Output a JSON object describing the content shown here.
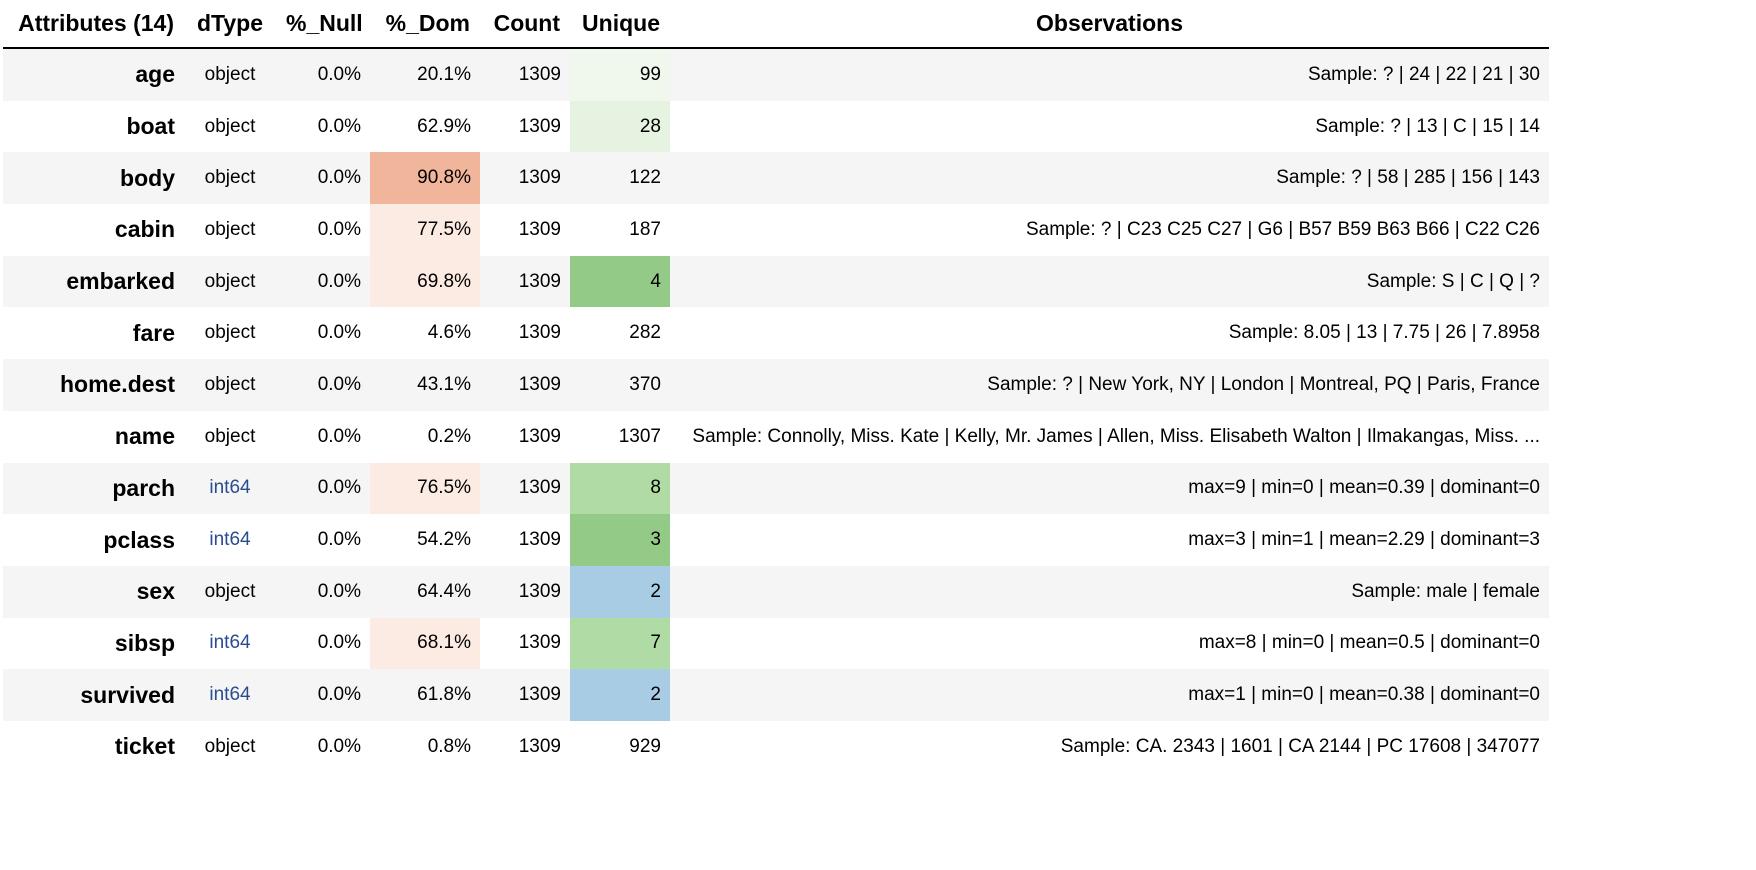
{
  "header": {
    "attributes": "Attributes (14)",
    "dtype": "dType",
    "null": "%_Null",
    "dom": "%_Dom",
    "count": "Count",
    "unique": "Unique",
    "observations": "Observations"
  },
  "rows": [
    {
      "name": "age",
      "dtype": "object",
      "null": "0.0%",
      "dom": "20.1%",
      "count": "1309",
      "unique": "99",
      "obs": "Sample: ? | 24 | 22 | 21 | 30",
      "dom_bg": "",
      "unique_bg": "#f0f8ee"
    },
    {
      "name": "boat",
      "dtype": "object",
      "null": "0.0%",
      "dom": "62.9%",
      "count": "1309",
      "unique": "28",
      "obs": "Sample: ? | 13 | C | 15 | 14",
      "dom_bg": "",
      "unique_bg": "#e6f3e1"
    },
    {
      "name": "body",
      "dtype": "object",
      "null": "0.0%",
      "dom": "90.8%",
      "count": "1309",
      "unique": "122",
      "obs": "Sample: ? | 58 | 285 | 156 | 143",
      "dom_bg": "#f1b59c",
      "unique_bg": ""
    },
    {
      "name": "cabin",
      "dtype": "object",
      "null": "0.0%",
      "dom": "77.5%",
      "count": "1309",
      "unique": "187",
      "obs": "Sample: ? | C23 C25 C27 | G6 | B57 B59 B63 B66 | C22 C26",
      "dom_bg": "#fcebe3",
      "unique_bg": ""
    },
    {
      "name": "embarked",
      "dtype": "object",
      "null": "0.0%",
      "dom": "69.8%",
      "count": "1309",
      "unique": "4",
      "obs": "Sample: S | C | Q | ?",
      "dom_bg": "#fcebe3",
      "unique_bg": "#93ca87"
    },
    {
      "name": "fare",
      "dtype": "object",
      "null": "0.0%",
      "dom": "4.6%",
      "count": "1309",
      "unique": "282",
      "obs": "Sample: 8.05 | 13 | 7.75 | 26 | 7.8958",
      "dom_bg": "",
      "unique_bg": ""
    },
    {
      "name": "home.dest",
      "dtype": "object",
      "null": "0.0%",
      "dom": "43.1%",
      "count": "1309",
      "unique": "370",
      "obs": "Sample: ? | New York, NY | London | Montreal, PQ | Paris, France",
      "dom_bg": "",
      "unique_bg": ""
    },
    {
      "name": "name",
      "dtype": "object",
      "null": "0.0%",
      "dom": "0.2%",
      "count": "1309",
      "unique": "1307",
      "obs": "Sample: Connolly, Miss. Kate | Kelly, Mr. James | Allen, Miss. Elisabeth Walton | Ilmakangas, Miss. ...",
      "dom_bg": "",
      "unique_bg": ""
    },
    {
      "name": "parch",
      "dtype": "int64",
      "null": "0.0%",
      "dom": "76.5%",
      "count": "1309",
      "unique": "8",
      "obs": "max=9 | min=0 | mean=0.39 | dominant=0",
      "dom_bg": "#fcebe3",
      "unique_bg": "#b0dba4"
    },
    {
      "name": "pclass",
      "dtype": "int64",
      "null": "0.0%",
      "dom": "54.2%",
      "count": "1309",
      "unique": "3",
      "obs": "max=3 | min=1 | mean=2.29 | dominant=3",
      "dom_bg": "",
      "unique_bg": "#93ca87"
    },
    {
      "name": "sex",
      "dtype": "object",
      "null": "0.0%",
      "dom": "64.4%",
      "count": "1309",
      "unique": "2",
      "obs": "Sample: male | female",
      "dom_bg": "",
      "unique_bg": "#a8cce3"
    },
    {
      "name": "sibsp",
      "dtype": "int64",
      "null": "0.0%",
      "dom": "68.1%",
      "count": "1309",
      "unique": "7",
      "obs": "max=8 | min=0 | mean=0.5 | dominant=0",
      "dom_bg": "#fcebe3",
      "unique_bg": "#b0dba4"
    },
    {
      "name": "survived",
      "dtype": "int64",
      "null": "0.0%",
      "dom": "61.8%",
      "count": "1309",
      "unique": "2",
      "obs": "max=1 | min=0 | mean=0.38 | dominant=0",
      "dom_bg": "",
      "unique_bg": "#a8cce3"
    },
    {
      "name": "ticket",
      "dtype": "object",
      "null": "0.0%",
      "dom": "0.8%",
      "count": "1309",
      "unique": "929",
      "obs": "Sample: CA. 2343 | 1601 | CA 2144 | PC 17608 | 347077",
      "dom_bg": "",
      "unique_bg": ""
    }
  ]
}
